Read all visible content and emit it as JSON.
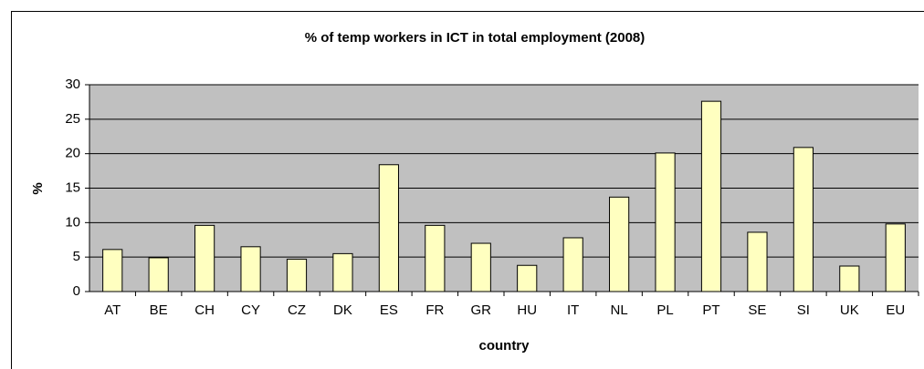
{
  "chart_data": {
    "type": "bar",
    "title": "% of temp workers in ICT in total employment (2008)",
    "x_label": "country",
    "y_label": "%",
    "categories": [
      "AT",
      "BE",
      "CH",
      "CY",
      "CZ",
      "DK",
      "ES",
      "FR",
      "GR",
      "HU",
      "IT",
      "NL",
      "PL",
      "PT",
      "SE",
      "SI",
      "UK",
      "EU"
    ],
    "values": [
      6.1,
      4.9,
      9.6,
      6.5,
      4.7,
      5.5,
      18.4,
      9.6,
      7.0,
      3.8,
      7.8,
      13.7,
      20.1,
      27.6,
      8.6,
      20.9,
      3.7,
      9.8
    ],
    "color": "#ffffc0",
    "ylim": [
      0,
      30
    ],
    "yticks": [
      0,
      5,
      10,
      15,
      20,
      25,
      30
    ],
    "grid": true
  }
}
